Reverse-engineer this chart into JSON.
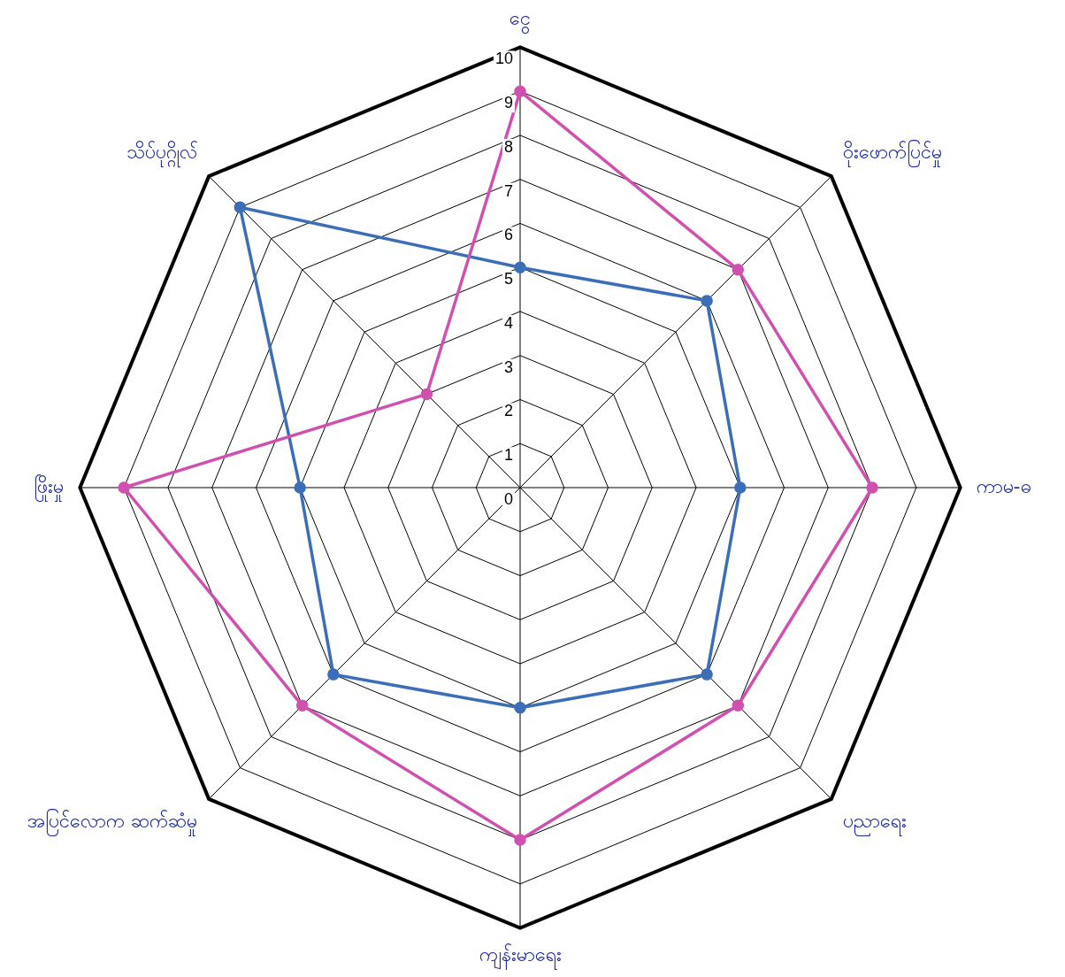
{
  "chart_data": {
    "type": "radar",
    "categories": [
      "ငွေ",
      "ဝိုးဖောက်ပြင်မှု",
      "ကာမ-ဓ",
      "ပညာရေး",
      "ကျန်းမာရေး",
      "အပြင်လောက ဆက်ဆံမှု",
      "ဖြိုးမှု",
      "သိပ်ပုဂ္ဂိုလ်"
    ],
    "series": [
      {
        "color": "#d050b0",
        "values": [
          9,
          7,
          8,
          7,
          8,
          7,
          9,
          3
        ]
      },
      {
        "color": "#3c6eb8",
        "values": [
          5,
          6,
          5,
          6,
          5,
          6,
          5,
          9
        ]
      }
    ],
    "ylim": [
      0,
      10
    ],
    "yticks": [
      0,
      1,
      2,
      3,
      4,
      5,
      6,
      7,
      8,
      9,
      10
    ],
    "grid": true,
    "marker": "circle",
    "legend": false
  }
}
